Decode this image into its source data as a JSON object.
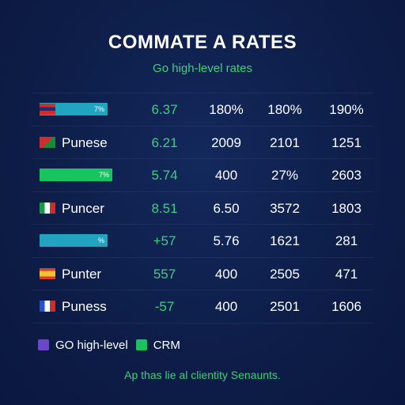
{
  "colors": {
    "background": "#0e1f4a",
    "accent_green": "#3fd07a",
    "bar_teal": "#22a3c0",
    "bar_green": "#18c45e",
    "legend_purple": "#6b46c8",
    "legend_green": "#18c45e"
  },
  "chart_data": {
    "type": "table",
    "title": "COMMATE A RATES",
    "subtitle": "Go high-level rates",
    "rows": [
      {
        "marker": "bar",
        "bar_color": "#22a3c0",
        "bar_label": "7%",
        "bar_fraction": 0.93,
        "label": "",
        "values": [
          "6.37",
          "180%",
          "180%",
          "190%"
        ]
      },
      {
        "marker": "flag",
        "flag_icon": "flag-icon",
        "label": "Punese",
        "values": [
          "6.21",
          "2009",
          "2101",
          "1251"
        ]
      },
      {
        "marker": "bar",
        "bar_color": "#18c45e",
        "bar_label": "7%",
        "bar_fraction": 1.0,
        "label": "",
        "values": [
          "5.74",
          "400",
          "27%",
          "2603"
        ]
      },
      {
        "marker": "flag",
        "flag_icon": "flag-icon",
        "label": "Puncer",
        "values": [
          "8.51",
          "6.50",
          "3572",
          "1803"
        ]
      },
      {
        "marker": "bar",
        "bar_color": "#22a3c0",
        "bar_label": "%",
        "bar_fraction": 0.93,
        "label": "",
        "values": [
          "+57",
          "5.76",
          "1621",
          "281"
        ]
      },
      {
        "marker": "flag",
        "flag_icon": "flag-icon",
        "label": "Punter",
        "values": [
          "557",
          "400",
          "2505",
          "471"
        ]
      },
      {
        "marker": "flag",
        "flag_icon": "flag-icon",
        "label": "Puness",
        "values": [
          "-57",
          "400",
          "2501",
          "1606"
        ]
      }
    ],
    "legend": [
      {
        "name": "GO high-level",
        "color": "#6b46c8"
      },
      {
        "name": "CRM",
        "color": "#18c45e"
      }
    ],
    "footer": "Ap thas lie al clientity Senaunts."
  }
}
